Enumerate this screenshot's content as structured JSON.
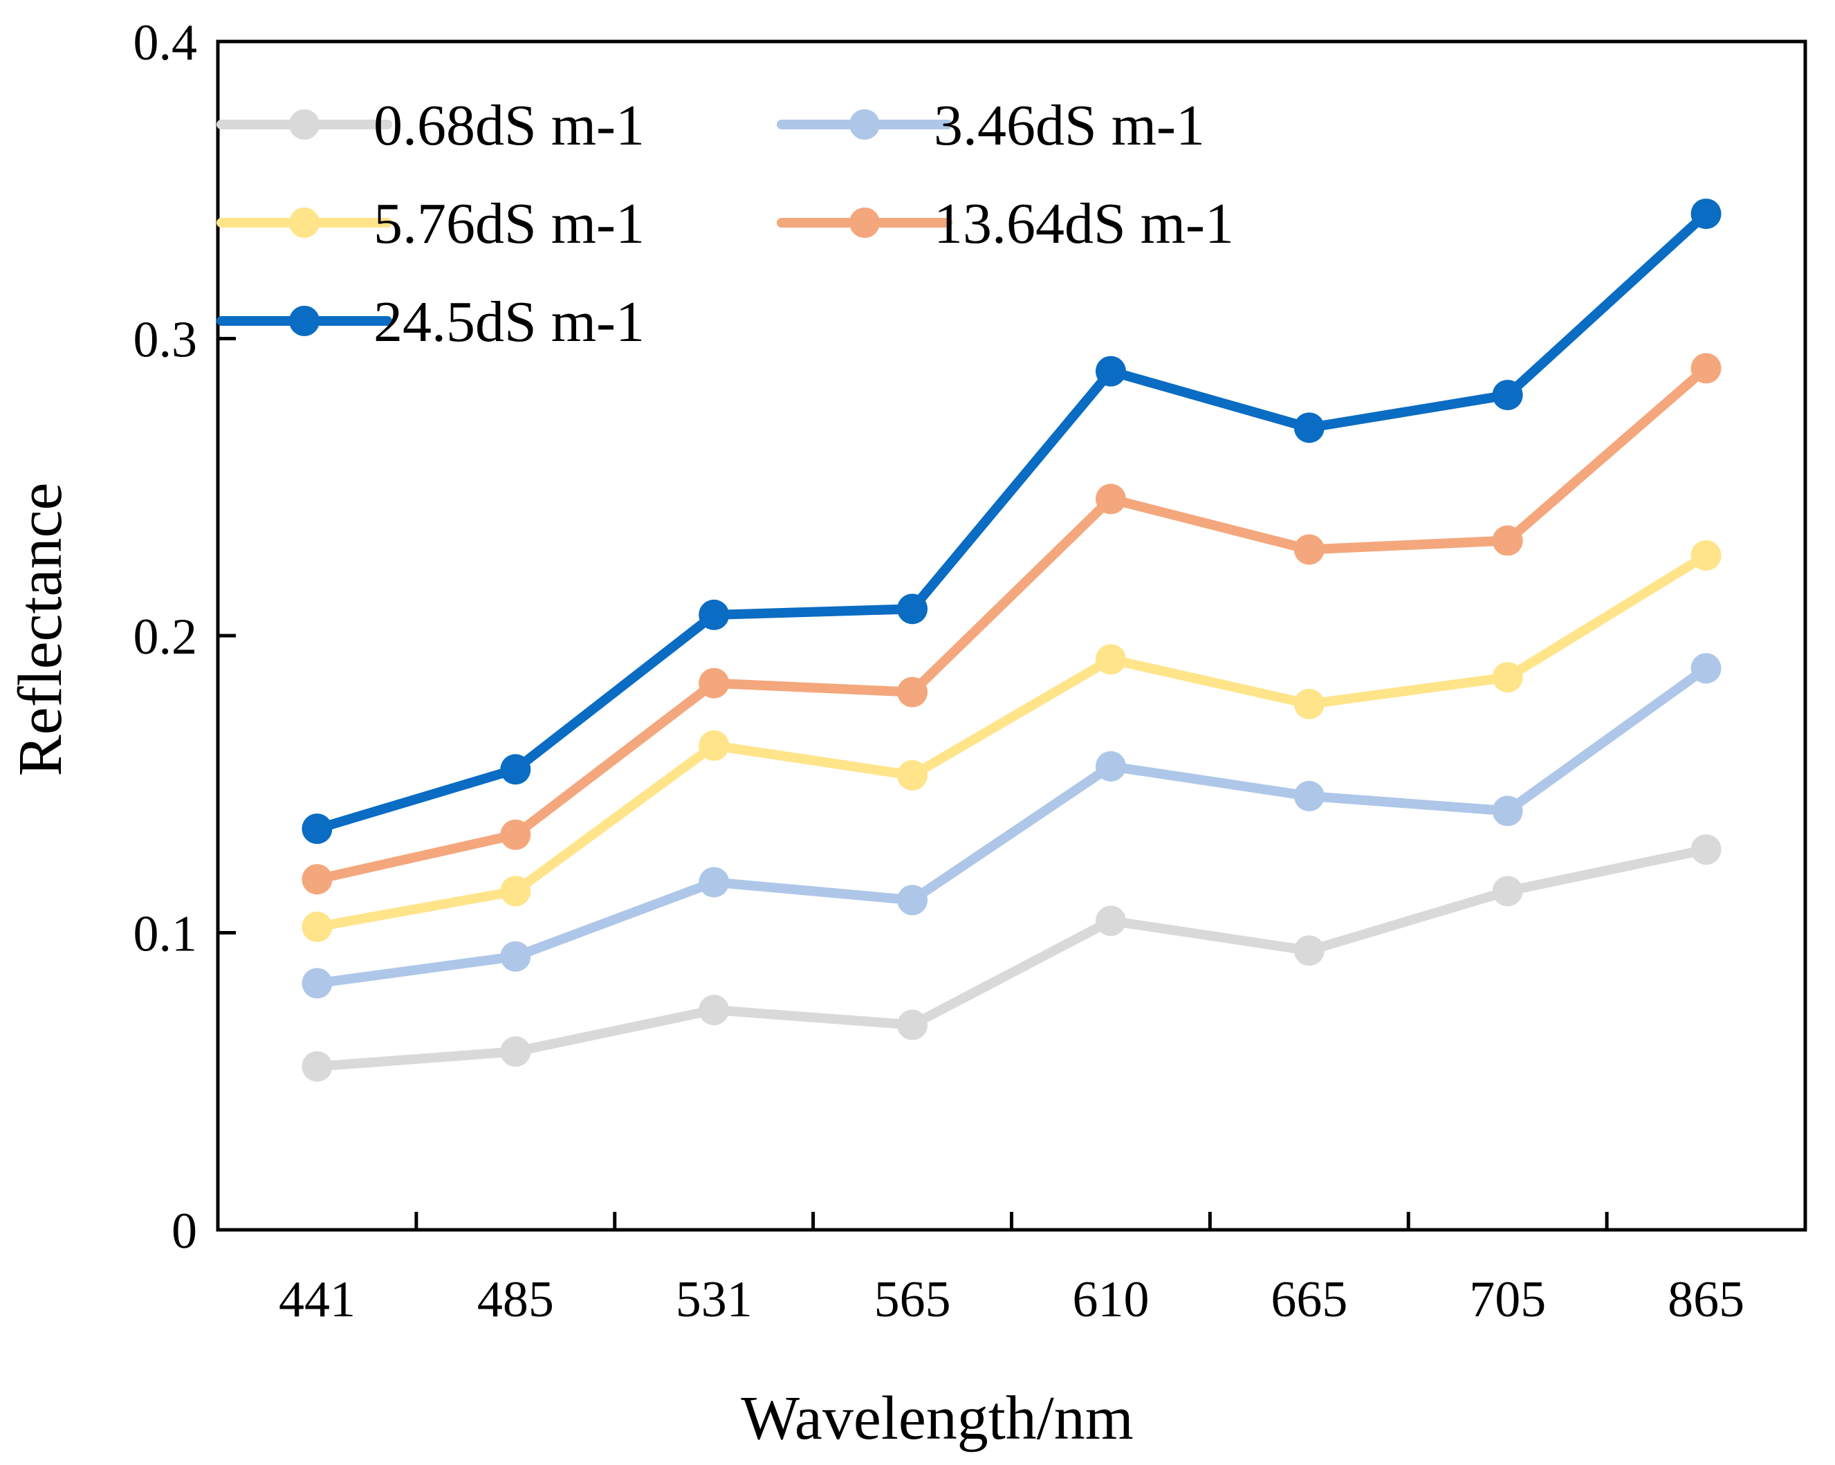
{
  "chart_data": {
    "type": "line",
    "title": "",
    "xlabel": "Wavelength/nm",
    "ylabel": "Reflectance",
    "categories": [
      "441",
      "485",
      "531",
      "565",
      "610",
      "665",
      "705",
      "865"
    ],
    "ylim": [
      0,
      0.4
    ],
    "yticks": [
      0,
      0.1,
      0.2,
      0.3,
      0.4
    ],
    "ytick_labels": [
      "0",
      "0.1",
      "0.2",
      "0.3",
      "0.4"
    ],
    "grid": false,
    "legend_position": "top-left",
    "series": [
      {
        "name": "0.68dS m-1",
        "color": "#d9d9d9",
        "values": [
          0.055,
          0.06,
          0.074,
          0.069,
          0.104,
          0.094,
          0.114,
          0.128
        ]
      },
      {
        "name": "3.46dS m-1",
        "color": "#aec7e8",
        "values": [
          0.083,
          0.092,
          0.117,
          0.111,
          0.156,
          0.146,
          0.141,
          0.189
        ]
      },
      {
        "name": "5.76dS m-1",
        "color": "#ffe48a",
        "values": [
          0.102,
          0.114,
          0.163,
          0.153,
          0.192,
          0.177,
          0.186,
          0.227
        ]
      },
      {
        "name": "13.64dS m-1",
        "color": "#f4a77c",
        "values": [
          0.118,
          0.133,
          0.184,
          0.181,
          0.246,
          0.229,
          0.232,
          0.29
        ]
      },
      {
        "name": "24.5dS m-1",
        "color": "#0a6cc2",
        "values": [
          0.135,
          0.155,
          0.207,
          0.209,
          0.289,
          0.27,
          0.281,
          0.342
        ]
      }
    ]
  }
}
